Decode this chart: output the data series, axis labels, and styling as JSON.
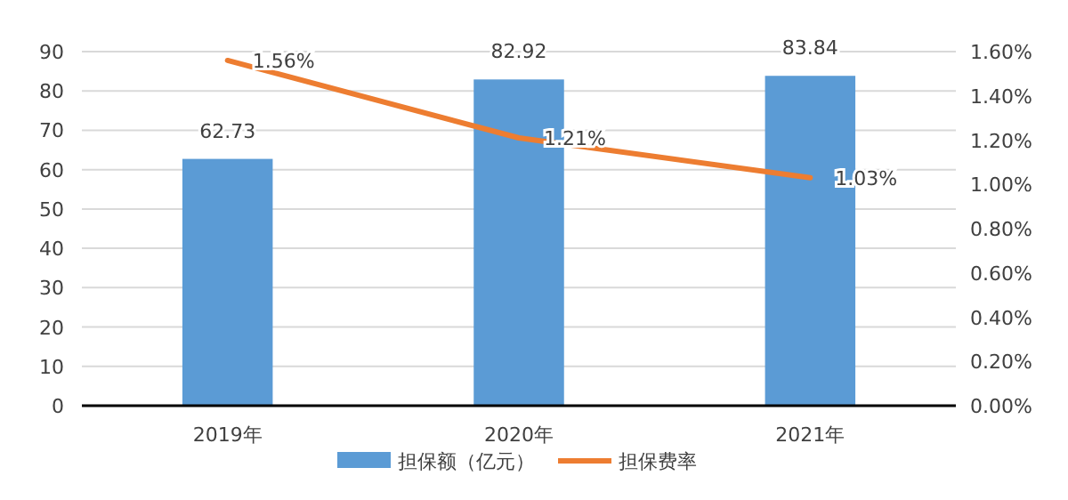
{
  "chart_data": {
    "type": "bar",
    "categories": [
      "2019年",
      "2020年",
      "2021年"
    ],
    "series": [
      {
        "name": "担保额（亿元）",
        "color": "#5b9bd5",
        "values": [
          62.73,
          82.92,
          83.84
        ],
        "value_labels": [
          "62.73",
          "82.92",
          "83.84"
        ]
      },
      {
        "name": "担保费率",
        "type": "line",
        "axis": "y2",
        "color": "#ed7d31",
        "values": [
          1.56,
          1.21,
          1.03
        ],
        "value_labels": [
          "1.56%",
          "1.21%",
          "1.03%"
        ]
      }
    ],
    "ylim": [
      0,
      90
    ],
    "yticks": [
      0,
      10,
      20,
      30,
      40,
      50,
      60,
      70,
      80,
      90
    ],
    "y2lim": [
      0,
      1.6
    ],
    "y2ticks": [
      {
        "value": 0,
        "label": "0.00%"
      },
      {
        "value": 0.2,
        "label": "0.20%"
      },
      {
        "value": 0.4,
        "label": "0.40%"
      },
      {
        "value": 0.6,
        "label": "0.60%"
      },
      {
        "value": 0.8,
        "label": "0.80%"
      },
      {
        "value": 1.0,
        "label": "1.00%"
      },
      {
        "value": 1.2,
        "label": "1.20%"
      },
      {
        "value": 1.4,
        "label": "1.40%"
      },
      {
        "value": 1.6,
        "label": "1.60%"
      }
    ],
    "grid": "y",
    "legend": "bottom"
  }
}
